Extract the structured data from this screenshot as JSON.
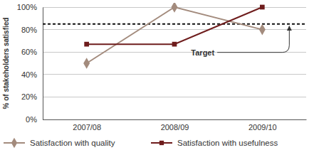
{
  "chart_data": {
    "type": "line",
    "y_label": "% of stakeholders satisfied",
    "categories": [
      "2007/08",
      "2008/09",
      "2009/10"
    ],
    "series": [
      {
        "name": "Satisfaction with quality",
        "color": "#a38b7d",
        "marker": "diamond",
        "values": [
          50,
          100,
          80
        ]
      },
      {
        "name": "Satisfaction with usefulness",
        "color": "#6e1c1c",
        "marker": "square",
        "values": [
          67,
          67,
          100
        ]
      }
    ],
    "target": {
      "label": "Target",
      "value": 85,
      "line_style": "dashed"
    },
    "ylim": [
      0,
      100
    ],
    "yticks": [
      {
        "value": 0,
        "label": "0%"
      },
      {
        "value": 20,
        "label": "20%"
      },
      {
        "value": 40,
        "label": "40%"
      },
      {
        "value": 60,
        "label": "60%"
      },
      {
        "value": 80,
        "label": "80%"
      },
      {
        "value": 100,
        "label": "100%"
      }
    ],
    "grid": true,
    "legend": "bottom"
  }
}
